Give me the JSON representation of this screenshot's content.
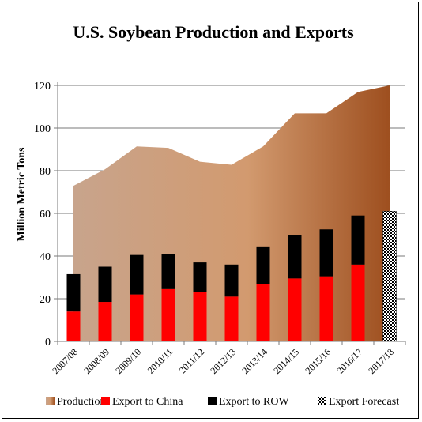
{
  "chart_data": {
    "type": "bar",
    "title": "U.S. Soybean Production and Exports",
    "ylabel": "Million Metric Tons",
    "xlabel": "",
    "ylim": [
      0,
      120
    ],
    "yticks": [
      0,
      20,
      40,
      60,
      80,
      100,
      120
    ],
    "grid": true,
    "legend_position": "bottom",
    "categories": [
      "2007/08",
      "2008/09",
      "2009/10",
      "2010/11",
      "2011/12",
      "2012/13",
      "2013/14",
      "2014/15",
      "2015/16",
      "2016/17",
      "2017/18"
    ],
    "series": [
      {
        "name": "Production",
        "kind": "area",
        "color": "#c8a48c",
        "gradient_end": "#9e4f1f",
        "values": [
          72.9,
          80.7,
          91.4,
          90.7,
          84.2,
          82.8,
          91.4,
          106.9,
          106.9,
          116.9,
          120.0
        ]
      },
      {
        "name": "Export to China",
        "kind": "bar",
        "color": "#ff0000",
        "values": [
          14,
          18.5,
          22,
          24.5,
          23,
          21,
          27,
          29.5,
          30.5,
          36,
          null
        ]
      },
      {
        "name": "Export to ROW",
        "kind": "bar",
        "color": "#000000",
        "values": [
          17.5,
          16.5,
          18.5,
          16.5,
          14,
          15,
          17.5,
          20.5,
          22,
          23,
          null
        ]
      },
      {
        "name": "Export Forecast",
        "kind": "bar",
        "pattern": "checker",
        "values": [
          null,
          null,
          null,
          null,
          null,
          null,
          null,
          null,
          null,
          null,
          61
        ]
      }
    ]
  }
}
